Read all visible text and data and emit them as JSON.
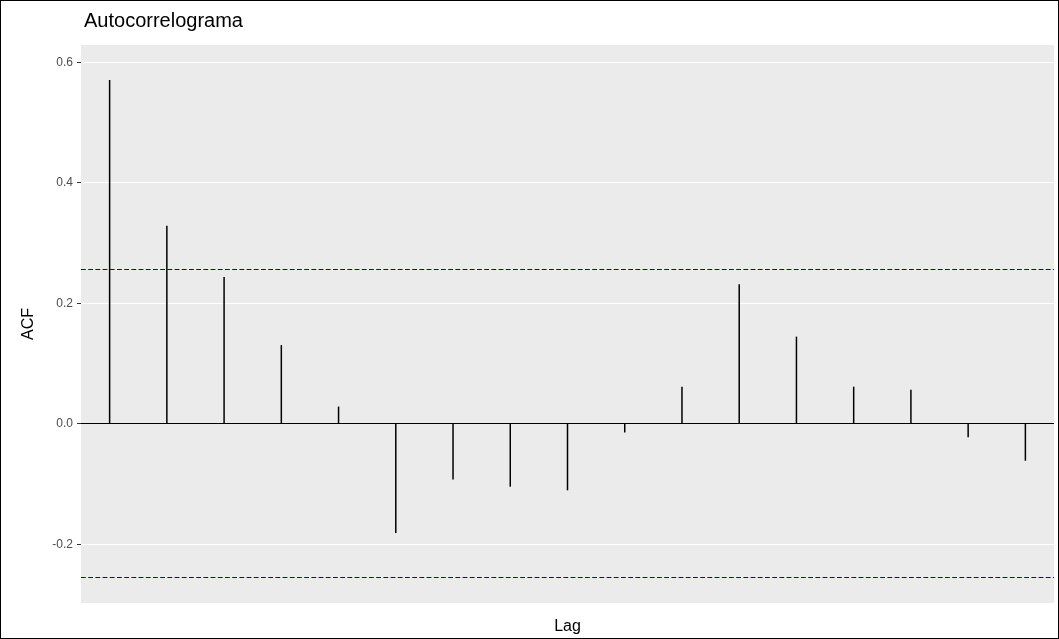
{
  "chart_data": {
    "type": "bar",
    "title": "Autocorrelograma",
    "xlabel": "Lag",
    "ylabel": "ACF",
    "categories": [
      null,
      null,
      null,
      null,
      null,
      null,
      null,
      null,
      null,
      null,
      null,
      null,
      null,
      null,
      null,
      null,
      null
    ],
    "values": [
      0.57,
      0.328,
      0.243,
      0.13,
      0.028,
      -0.182,
      -0.093,
      -0.105,
      -0.111,
      -0.015,
      0.061,
      0.231,
      0.144,
      0.061,
      0.056,
      -0.023,
      -0.062
    ],
    "color": "#000000",
    "ylim": [
      -0.298,
      0.628
    ],
    "yticks": [
      {
        "value": -0.2,
        "label": "-0.2"
      },
      {
        "value": 0,
        "label": "0.0"
      },
      {
        "value": 0.2,
        "label": "0.2"
      },
      {
        "value": 0.4,
        "label": "0.4"
      },
      {
        "value": 0.6,
        "label": "0.6"
      }
    ],
    "grid": "y",
    "tick_labels": "y",
    "ref_lines": [
      {
        "axis": "y",
        "value": 0.256,
        "color": "#0000cc",
        "line_style": "dashed"
      },
      {
        "axis": "y",
        "value": -0.256,
        "color": "#0000cc",
        "line_style": "dashed"
      },
      {
        "axis": "y",
        "value": 0,
        "color": "#000000",
        "line_style": "solid"
      }
    ]
  }
}
